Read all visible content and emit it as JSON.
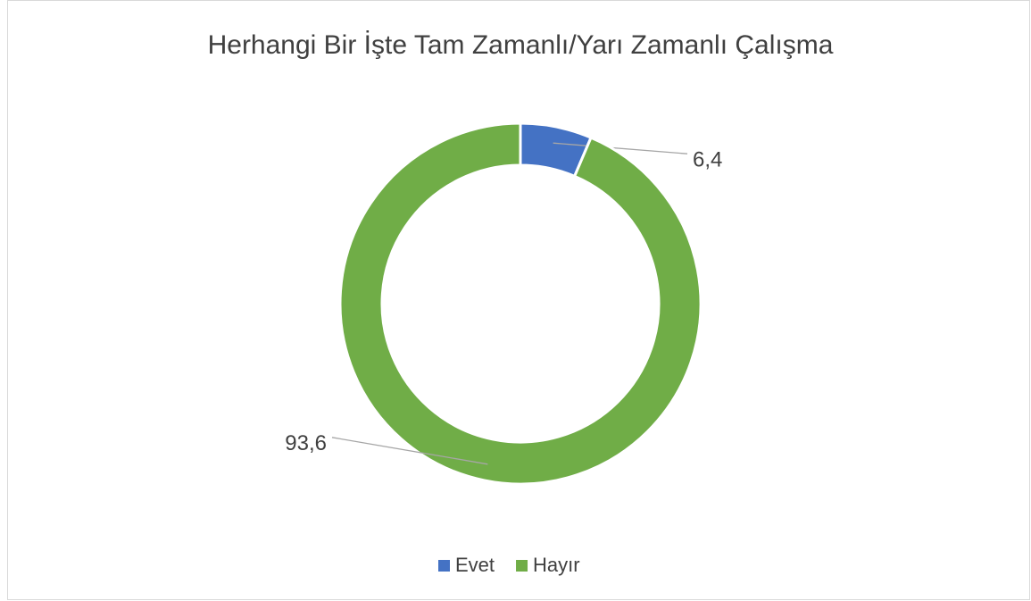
{
  "chart_data": {
    "type": "donut",
    "title": "Herhangi Bir İşte Tam Zamanlı/Yarı Zamanlı Çalışma",
    "categories": [
      "Evet",
      "Hayır"
    ],
    "values": [
      6.4,
      93.6
    ],
    "value_labels": [
      "6,4",
      "93,6"
    ],
    "colors": [
      "#4472c4",
      "#70ad47"
    ],
    "legend": "bottom"
  }
}
